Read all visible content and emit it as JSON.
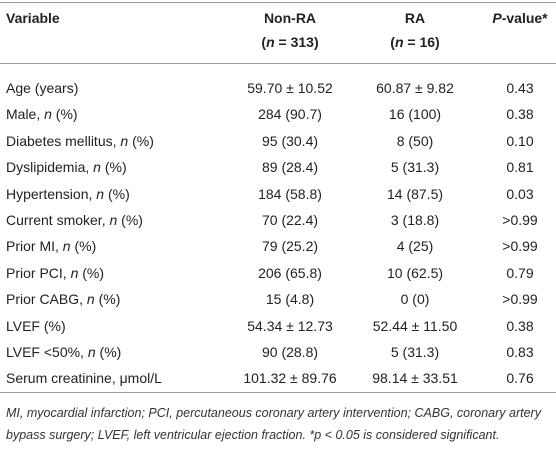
{
  "table": {
    "columns": [
      {
        "lines": [
          [
            {
              "text": "Variable"
            }
          ]
        ]
      },
      {
        "lines": [
          [
            {
              "text": "Non-RA"
            }
          ],
          [
            {
              "text": "("
            },
            {
              "text": "n",
              "italic": true
            },
            {
              "text": " = 313)"
            }
          ]
        ]
      },
      {
        "lines": [
          [
            {
              "text": "RA"
            }
          ],
          [
            {
              "text": "("
            },
            {
              "text": "n",
              "italic": true
            },
            {
              "text": " = 16)"
            }
          ]
        ]
      },
      {
        "lines": [
          [
            {
              "text": "P",
              "italic": true
            },
            {
              "text": "-value*"
            }
          ]
        ]
      }
    ],
    "rows": [
      {
        "label": [
          {
            "text": "Age (years)"
          }
        ],
        "values": [
          "59.70 ± 10.52",
          "60.87 ± 9.82",
          "0.43"
        ]
      },
      {
        "label": [
          {
            "text": "Male, "
          },
          {
            "text": "n",
            "italic": true
          },
          {
            "text": " (%)"
          }
        ],
        "values": [
          "284 (90.7)",
          "16 (100)",
          "0.38"
        ]
      },
      {
        "label": [
          {
            "text": "Diabetes mellitus, "
          },
          {
            "text": "n",
            "italic": true
          },
          {
            "text": " (%)"
          }
        ],
        "values": [
          "95 (30.4)",
          "8 (50)",
          "0.10"
        ]
      },
      {
        "label": [
          {
            "text": "Dyslipidemia, "
          },
          {
            "text": "n",
            "italic": true
          },
          {
            "text": " (%)"
          }
        ],
        "values": [
          "89 (28.4)",
          "5 (31.3)",
          "0.81"
        ]
      },
      {
        "label": [
          {
            "text": "Hypertension, "
          },
          {
            "text": "n",
            "italic": true
          },
          {
            "text": " (%)"
          }
        ],
        "values": [
          "184 (58.8)",
          "14 (87.5)",
          "0.03"
        ]
      },
      {
        "label": [
          {
            "text": "Current smoker, "
          },
          {
            "text": "n",
            "italic": true
          },
          {
            "text": " (%)"
          }
        ],
        "values": [
          "70 (22.4)",
          "3 (18.8)",
          ">0.99"
        ]
      },
      {
        "label": [
          {
            "text": "Prior MI, "
          },
          {
            "text": "n",
            "italic": true
          },
          {
            "text": " (%)"
          }
        ],
        "values": [
          "79 (25.2)",
          "4 (25)",
          ">0.99"
        ]
      },
      {
        "label": [
          {
            "text": "Prior PCI, "
          },
          {
            "text": "n",
            "italic": true
          },
          {
            "text": " (%)"
          }
        ],
        "values": [
          "206 (65.8)",
          "10 (62.5)",
          "0.79"
        ]
      },
      {
        "label": [
          {
            "text": "Prior CABG, "
          },
          {
            "text": "n",
            "italic": true
          },
          {
            "text": " (%)"
          }
        ],
        "values": [
          "15 (4.8)",
          "0 (0)",
          ">0.99"
        ]
      },
      {
        "label": [
          {
            "text": "LVEF (%)"
          }
        ],
        "values": [
          "54.34 ± 12.73",
          "52.44 ± 11.50",
          "0.38"
        ]
      },
      {
        "label": [
          {
            "text": "LVEF <50%, "
          },
          {
            "text": "n",
            "italic": true
          },
          {
            "text": " (%)"
          }
        ],
        "values": [
          "90 (28.8)",
          "5 (31.3)",
          "0.83"
        ]
      },
      {
        "label": [
          {
            "text": "Serum creatinine, μmol/L"
          }
        ],
        "values": [
          "101.32 ± 89.76",
          "98.14 ± 33.51",
          "0.76"
        ]
      }
    ]
  },
  "footnote": "MI, myocardial infarction; PCI, percutaneous coronary artery intervention; CABG, coronary artery bypass surgery; LVEF, left ventricular ejection fraction. *p < 0.05 is considered significant."
}
